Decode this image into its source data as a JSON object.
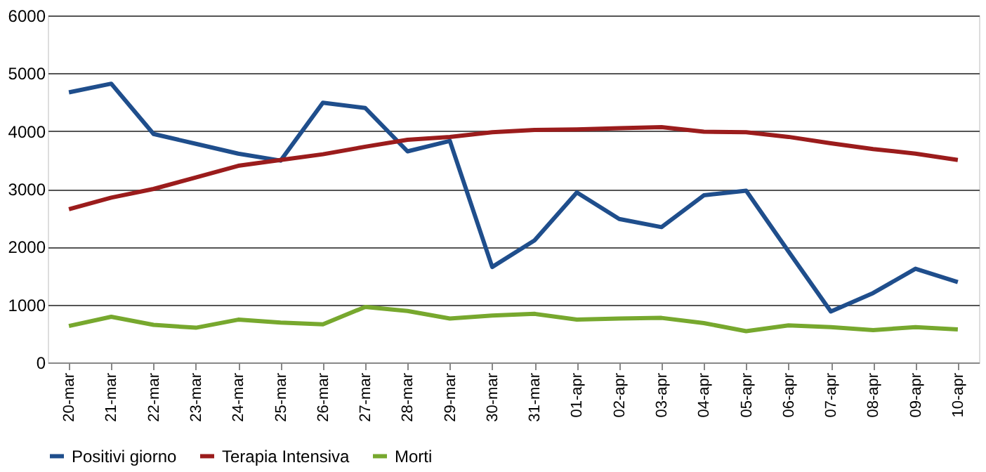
{
  "chart_data": {
    "type": "line",
    "categories": [
      "20-mar",
      "21-mar",
      "22-mar",
      "23-mar",
      "24-mar",
      "25-mar",
      "26-mar",
      "27-mar",
      "28-mar",
      "29-mar",
      "30-mar",
      "31-mar",
      "01-apr",
      "02-apr",
      "03-apr",
      "04-apr",
      "05-apr",
      "06-apr",
      "07-apr",
      "08-apr",
      "09-apr",
      "10-apr"
    ],
    "series": [
      {
        "name": "Positivi giorno",
        "color": "#1f4e8c",
        "values": [
          4670,
          4820,
          3950,
          3780,
          3610,
          3490,
          4490,
          4400,
          3650,
          3830,
          1650,
          2110,
          2940,
          2480,
          2340,
          2890,
          2970,
          1920,
          880,
          1200,
          1620,
          1390
        ]
      },
      {
        "name": "Terapia Intensiva",
        "color": "#9b1c1c",
        "values": [
          2650,
          2850,
          3000,
          3200,
          3400,
          3500,
          3600,
          3730,
          3850,
          3900,
          3980,
          4020,
          4030,
          4050,
          4070,
          3990,
          3980,
          3900,
          3790,
          3690,
          3610,
          3500
        ]
      },
      {
        "name": "Morti",
        "color": "#77a82e",
        "values": [
          630,
          790,
          650,
          600,
          740,
          690,
          660,
          960,
          890,
          760,
          810,
          840,
          740,
          760,
          770,
          680,
          540,
          640,
          610,
          560,
          610,
          570
        ]
      }
    ],
    "ylim": [
      0,
      6000
    ],
    "yticks": [
      0,
      1000,
      2000,
      3000,
      4000,
      5000,
      6000
    ],
    "grid": "y",
    "legend": "bottom",
    "marker": "none",
    "line_style": "solid"
  }
}
